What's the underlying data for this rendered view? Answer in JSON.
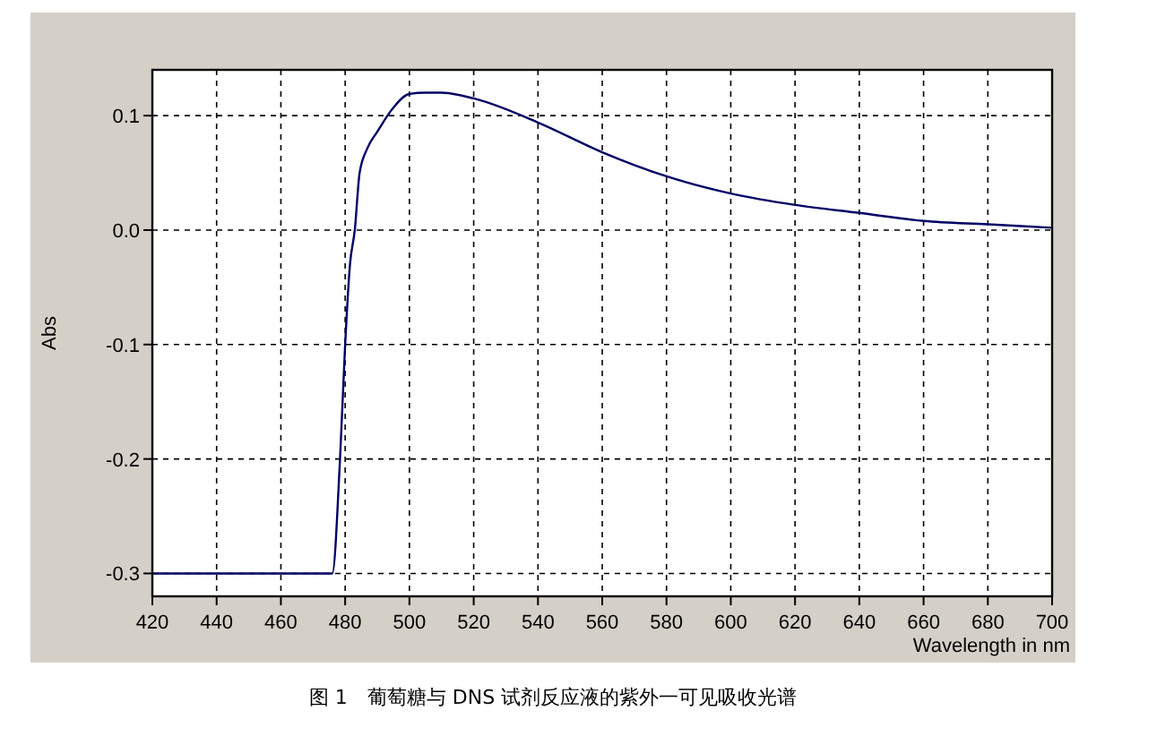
{
  "chart_data": {
    "type": "line",
    "title": "图 1　葡萄糖与 DNS 试剂反应液的紫外一可见吸收光谱",
    "xlabel": "Wavelength in nm",
    "ylabel": "Abs",
    "series": [
      {
        "color": "#000066",
        "x": [
          420,
          440,
          460,
          476,
          478.4,
          480,
          481.5,
          483,
          484.5,
          487,
          490,
          495,
          500,
          505,
          510,
          520,
          540,
          560,
          580,
          600,
          620,
          640,
          660,
          680,
          700
        ],
        "values": [
          -0.3,
          -0.3,
          -0.3,
          -0.3,
          -0.2,
          -0.1,
          -0.03,
          0.0,
          0.05,
          0.072,
          0.086,
          0.107,
          0.119,
          0.12,
          0.12,
          0.115,
          0.094,
          0.068,
          0.047,
          0.032,
          0.022,
          0.015,
          0.008,
          0.005,
          0.002
        ]
      }
    ],
    "xlim": [
      420,
      700
    ],
    "xticks": [
      420,
      440,
      460,
      480,
      500,
      520,
      540,
      560,
      580,
      600,
      620,
      640,
      660,
      680,
      700
    ],
    "ylim": [
      -0.32,
      0.14
    ],
    "yticks": [
      {
        "value": -0.3,
        "label": "-0.3"
      },
      {
        "value": -0.2,
        "label": "-0.2"
      },
      {
        "value": -0.1,
        "label": "-0.1"
      },
      {
        "value": 0,
        "label": "0.0"
      },
      {
        "value": 0.1,
        "label": "0.1"
      }
    ],
    "grid": true,
    "marker": "none",
    "line_style": "solid"
  }
}
